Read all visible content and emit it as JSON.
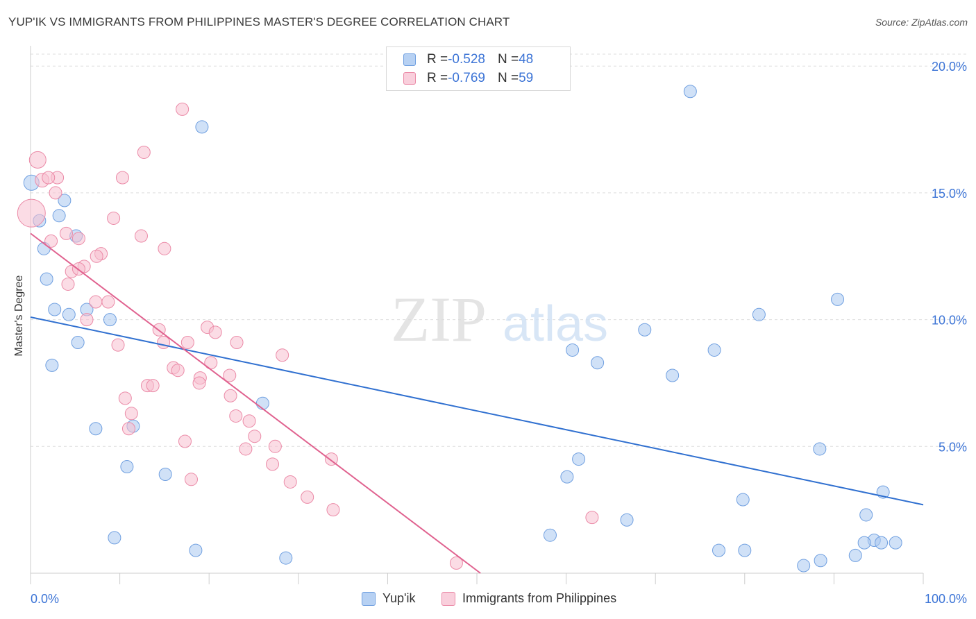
{
  "header": {
    "title": "YUP'IK VS IMMIGRANTS FROM PHILIPPINES MASTER'S DEGREE CORRELATION CHART",
    "source": "Source: ZipAtlas.com"
  },
  "legend": {
    "r_label": "R = ",
    "n_label": "N = ",
    "series1": {
      "r": "-0.528",
      "n": "48"
    },
    "series2": {
      "r": "-0.769",
      "n": "59"
    }
  },
  "watermark": {
    "zip": "ZIP",
    "atlas": "atlas"
  },
  "colors": {
    "blue_fill": "#a9c8f0",
    "blue_stroke": "#6f9fe0",
    "blue_line": "#3070d0",
    "pink_fill": "#f7bfd0",
    "pink_stroke": "#eb8aa7",
    "pink_line": "#e0628f",
    "tick_label": "#3c74d6",
    "grid": "#dddddd"
  },
  "chart_data": {
    "type": "scatter",
    "title": "YUP'IK VS IMMIGRANTS FROM PHILIPPINES MASTER'S DEGREE CORRELATION CHART",
    "xlabel": "",
    "ylabel": "Master's Degree",
    "xlim": [
      0,
      100
    ],
    "ylim": [
      0,
      20.8
    ],
    "x_tick_labels": [
      "0.0%",
      "100.0%"
    ],
    "y_ticks": [
      5,
      10,
      15,
      20
    ],
    "y_tick_labels": [
      "5.0%",
      "10.0%",
      "15.0%",
      "20.0%"
    ],
    "grid": "horizontal dashed",
    "legend_position": "top-center",
    "series": [
      {
        "name": "Yup'ik",
        "color": "blue",
        "trend": {
          "x": [
            0,
            100
          ],
          "y": [
            10.1,
            2.7
          ]
        },
        "points": [
          [
            0.1,
            15.4,
            11
          ],
          [
            1.0,
            13.9,
            9
          ],
          [
            1.5,
            12.8,
            9
          ],
          [
            3.8,
            14.7,
            9
          ],
          [
            3.2,
            14.1,
            9
          ],
          [
            5.1,
            13.3,
            9
          ],
          [
            1.8,
            11.6,
            9
          ],
          [
            2.7,
            10.4,
            9
          ],
          [
            4.3,
            10.2,
            9
          ],
          [
            6.3,
            10.4,
            9
          ],
          [
            8.9,
            10.0,
            9
          ],
          [
            5.3,
            9.1,
            9
          ],
          [
            2.4,
            8.2,
            9
          ],
          [
            7.3,
            5.7,
            9
          ],
          [
            11.5,
            5.8,
            9
          ],
          [
            10.8,
            4.2,
            9
          ],
          [
            15.1,
            3.9,
            9
          ],
          [
            9.4,
            1.4,
            9
          ],
          [
            18.5,
            0.9,
            9
          ],
          [
            19.2,
            17.6,
            9
          ],
          [
            26.0,
            6.7,
            9
          ],
          [
            28.6,
            0.6,
            9
          ],
          [
            73.9,
            19.0,
            9
          ],
          [
            90.4,
            10.8,
            9
          ],
          [
            81.6,
            10.2,
            9
          ],
          [
            68.8,
            9.6,
            9
          ],
          [
            60.7,
            8.8,
            9
          ],
          [
            63.5,
            8.3,
            9
          ],
          [
            76.6,
            8.8,
            9
          ],
          [
            71.9,
            7.8,
            9
          ],
          [
            88.4,
            4.9,
            9
          ],
          [
            61.4,
            4.5,
            9
          ],
          [
            60.1,
            3.8,
            9
          ],
          [
            79.8,
            2.9,
            9
          ],
          [
            95.5,
            3.2,
            9
          ],
          [
            93.6,
            2.3,
            9
          ],
          [
            66.8,
            2.1,
            9
          ],
          [
            58.2,
            1.5,
            9
          ],
          [
            77.1,
            0.9,
            9
          ],
          [
            80.0,
            0.9,
            9
          ],
          [
            94.5,
            1.3,
            9
          ],
          [
            93.4,
            1.2,
            9
          ],
          [
            95.3,
            1.2,
            9
          ],
          [
            96.9,
            1.2,
            9
          ],
          [
            92.4,
            0.7,
            9
          ],
          [
            88.5,
            0.5,
            9
          ],
          [
            86.6,
            0.3,
            9
          ]
        ]
      },
      {
        "name": "Immigrants from Philippines",
        "color": "pink",
        "trend": {
          "x": [
            0,
            50.4
          ],
          "y": [
            13.4,
            0.0
          ]
        },
        "points": [
          [
            0.1,
            14.2,
            20
          ],
          [
            0.8,
            16.3,
            12
          ],
          [
            1.3,
            15.5,
            10
          ],
          [
            3.0,
            15.6,
            9
          ],
          [
            2.0,
            15.6,
            9
          ],
          [
            2.8,
            15.0,
            9
          ],
          [
            17.0,
            18.3,
            9
          ],
          [
            12.7,
            16.6,
            9
          ],
          [
            10.3,
            15.6,
            9
          ],
          [
            9.3,
            14.0,
            9
          ],
          [
            4.0,
            13.4,
            9
          ],
          [
            5.4,
            13.2,
            9
          ],
          [
            12.4,
            13.3,
            9
          ],
          [
            2.3,
            13.1,
            9
          ],
          [
            7.9,
            12.6,
            9
          ],
          [
            15.0,
            12.8,
            9
          ],
          [
            7.4,
            12.5,
            9
          ],
          [
            6.0,
            12.1,
            9
          ],
          [
            4.6,
            11.9,
            9
          ],
          [
            5.4,
            12.0,
            9
          ],
          [
            4.2,
            11.4,
            9
          ],
          [
            8.7,
            10.7,
            9
          ],
          [
            7.3,
            10.7,
            9
          ],
          [
            6.3,
            10.0,
            9
          ],
          [
            14.4,
            9.6,
            9
          ],
          [
            19.8,
            9.7,
            9
          ],
          [
            20.7,
            9.5,
            9
          ],
          [
            14.9,
            9.1,
            9
          ],
          [
            17.6,
            9.1,
            9
          ],
          [
            23.1,
            9.1,
            9
          ],
          [
            9.8,
            9.0,
            9
          ],
          [
            28.2,
            8.6,
            9
          ],
          [
            20.2,
            8.3,
            9
          ],
          [
            16.0,
            8.1,
            9
          ],
          [
            16.5,
            8.0,
            9
          ],
          [
            19.0,
            7.7,
            9
          ],
          [
            22.3,
            7.8,
            9
          ],
          [
            13.1,
            7.4,
            9
          ],
          [
            13.7,
            7.4,
            9
          ],
          [
            18.9,
            7.5,
            9
          ],
          [
            10.6,
            6.9,
            9
          ],
          [
            22.4,
            7.0,
            9
          ],
          [
            11.3,
            6.3,
            9
          ],
          [
            23.0,
            6.2,
            9
          ],
          [
            24.5,
            6.0,
            9
          ],
          [
            11.0,
            5.7,
            9
          ],
          [
            25.1,
            5.4,
            9
          ],
          [
            17.3,
            5.2,
            9
          ],
          [
            24.1,
            4.9,
            9
          ],
          [
            27.4,
            5.0,
            9
          ],
          [
            27.1,
            4.3,
            9
          ],
          [
            33.7,
            4.5,
            9
          ],
          [
            18.0,
            3.7,
            9
          ],
          [
            29.1,
            3.6,
            9
          ],
          [
            31.0,
            3.0,
            9
          ],
          [
            33.9,
            2.5,
            9
          ],
          [
            62.9,
            2.2,
            9
          ],
          [
            47.7,
            0.4,
            9
          ]
        ]
      }
    ]
  }
}
